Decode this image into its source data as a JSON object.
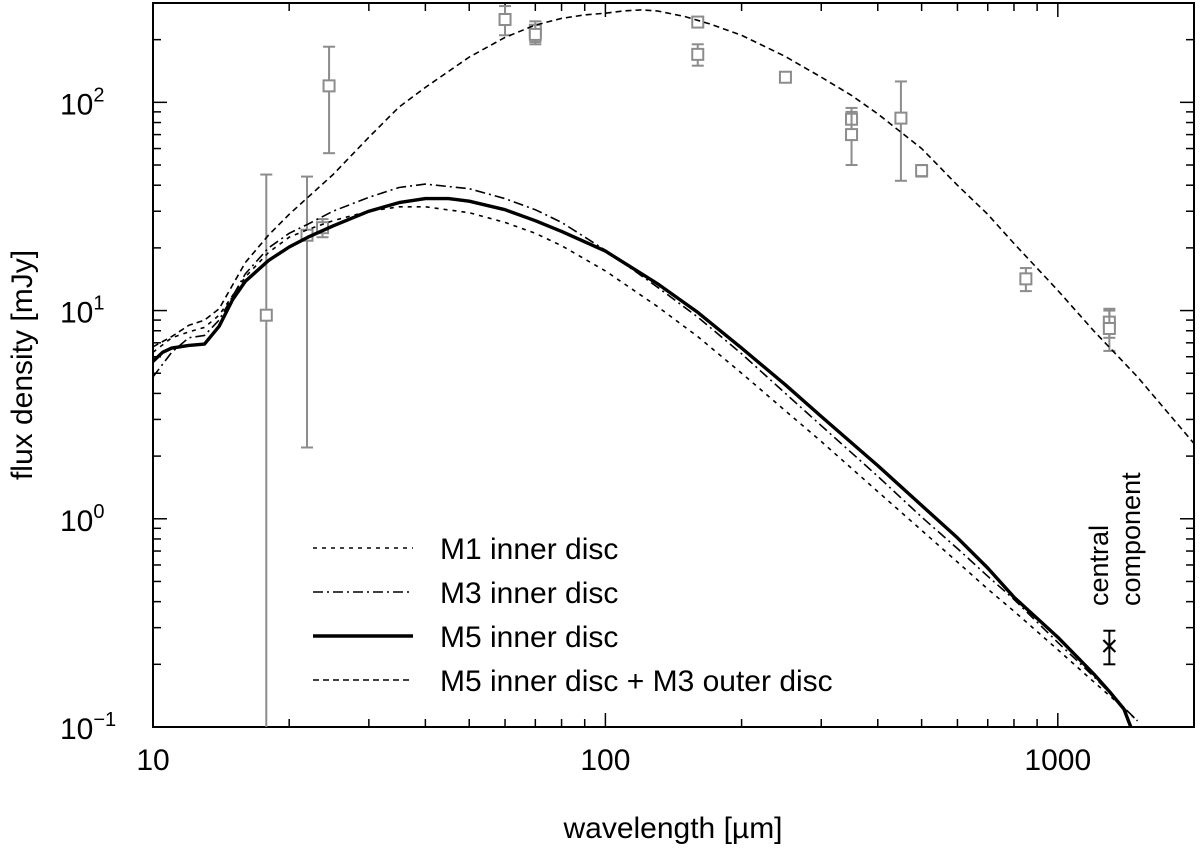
{
  "chart_data": {
    "type": "line",
    "xlabel": "wavelength [µm]",
    "ylabel": "flux density [mJy]",
    "xscale": "log",
    "yscale": "log",
    "xlim": [
      10,
      2000
    ],
    "ylim": [
      0.1,
      300
    ],
    "x_ticks": [
      {
        "value": 10,
        "label": "10"
      },
      {
        "value": 100,
        "label": "100"
      },
      {
        "value": 1000,
        "label": "1000"
      }
    ],
    "y_ticks": [
      {
        "value": 0.1,
        "base": "10",
        "exp": "−1"
      },
      {
        "value": 1,
        "base": "10",
        "exp": "0"
      },
      {
        "value": 10,
        "base": "10",
        "exp": "1"
      },
      {
        "value": 100,
        "base": "10",
        "exp": "2"
      }
    ],
    "grid": false,
    "legend_position": "bottom-left",
    "series": [
      {
        "name": "M1 inner disc",
        "style": "dotted",
        "points": [
          [
            10,
            6.3
          ],
          [
            11,
            7.4
          ],
          [
            12,
            7.9
          ],
          [
            13,
            8.3
          ],
          [
            14,
            9.5
          ],
          [
            16,
            14.5
          ],
          [
            18,
            19
          ],
          [
            20,
            22.5
          ],
          [
            22,
            24.5
          ],
          [
            25,
            27
          ],
          [
            30,
            30
          ],
          [
            35,
            31.5
          ],
          [
            40,
            31.5
          ],
          [
            50,
            29.5
          ],
          [
            60,
            26.5
          ],
          [
            70,
            23.5
          ],
          [
            80,
            20.5
          ],
          [
            100,
            15.5
          ],
          [
            130,
            10.5
          ],
          [
            160,
            7.5
          ],
          [
            200,
            5.0
          ],
          [
            250,
            3.3
          ],
          [
            300,
            2.35
          ],
          [
            400,
            1.35
          ],
          [
            500,
            0.88
          ],
          [
            600,
            0.62
          ],
          [
            700,
            0.46
          ],
          [
            800,
            0.36
          ],
          [
            1000,
            0.235
          ],
          [
            1200,
            0.165
          ],
          [
            1400,
            0.123
          ],
          [
            1500,
            0.107
          ]
        ]
      },
      {
        "name": "M3 inner disc",
        "style": "dash-dot",
        "points": [
          [
            10,
            4.8
          ],
          [
            11,
            6.3
          ],
          [
            12,
            7.4
          ],
          [
            13,
            7.6
          ],
          [
            14,
            9
          ],
          [
            16,
            15
          ],
          [
            18,
            20
          ],
          [
            20,
            23.5
          ],
          [
            22,
            26
          ],
          [
            25,
            30
          ],
          [
            30,
            35
          ],
          [
            35,
            39
          ],
          [
            40,
            40.5
          ],
          [
            50,
            38.5
          ],
          [
            60,
            34.5
          ],
          [
            70,
            30.5
          ],
          [
            80,
            26.5
          ],
          [
            100,
            19.5
          ],
          [
            130,
            13
          ],
          [
            160,
            9.3
          ],
          [
            200,
            6.2
          ],
          [
            250,
            4.0
          ],
          [
            300,
            2.8
          ],
          [
            400,
            1.6
          ],
          [
            500,
            1.02
          ],
          [
            600,
            0.72
          ],
          [
            700,
            0.53
          ],
          [
            800,
            0.41
          ],
          [
            1000,
            0.255
          ],
          [
            1200,
            0.175
          ],
          [
            1400,
            0.124
          ],
          [
            1500,
            0.107
          ]
        ]
      },
      {
        "name": "M5 inner disc",
        "style": "solid-thick",
        "points": [
          [
            10,
            5.7
          ],
          [
            10.5,
            6.3
          ],
          [
            11,
            6.6
          ],
          [
            12,
            6.8
          ],
          [
            13,
            6.9
          ],
          [
            14,
            8.4
          ],
          [
            15,
            11.3
          ],
          [
            16,
            13.8
          ],
          [
            18,
            17.4
          ],
          [
            20,
            20.2
          ],
          [
            22,
            22.5
          ],
          [
            25,
            25.5
          ],
          [
            30,
            30
          ],
          [
            35,
            33
          ],
          [
            40,
            34.5
          ],
          [
            45,
            34.5
          ],
          [
            50,
            33.5
          ],
          [
            60,
            30.5
          ],
          [
            70,
            27
          ],
          [
            80,
            24
          ],
          [
            100,
            19.3
          ],
          [
            130,
            13.5
          ],
          [
            160,
            9.8
          ],
          [
            200,
            6.6
          ],
          [
            250,
            4.4
          ],
          [
            300,
            3.1
          ],
          [
            400,
            1.8
          ],
          [
            500,
            1.16
          ],
          [
            600,
            0.81
          ],
          [
            700,
            0.58
          ],
          [
            800,
            0.42
          ],
          [
            1000,
            0.27
          ],
          [
            1200,
            0.18
          ],
          [
            1300,
            0.148
          ],
          [
            1400,
            0.122
          ],
          [
            1450,
            0.1
          ]
        ]
      },
      {
        "name": "M5 inner disc + M3 outer disc",
        "style": "dashed",
        "points": [
          [
            10,
            6.7
          ],
          [
            11,
            7.5
          ],
          [
            12,
            8.5
          ],
          [
            13,
            9
          ],
          [
            14,
            10.2
          ],
          [
            16,
            17
          ],
          [
            18,
            23
          ],
          [
            20,
            29
          ],
          [
            22,
            35
          ],
          [
            25,
            45
          ],
          [
            30,
            68
          ],
          [
            35,
            95
          ],
          [
            40,
            118
          ],
          [
            50,
            165
          ],
          [
            60,
            205
          ],
          [
            70,
            235
          ],
          [
            80,
            253
          ],
          [
            90,
            263
          ],
          [
            100,
            268
          ],
          [
            110,
            275
          ],
          [
            120,
            278
          ],
          [
            130,
            275
          ],
          [
            150,
            258
          ],
          [
            170,
            238
          ],
          [
            200,
            210
          ],
          [
            250,
            166
          ],
          [
            300,
            132
          ],
          [
            350,
            108
          ],
          [
            400,
            88
          ],
          [
            500,
            60
          ],
          [
            600,
            40
          ],
          [
            700,
            29
          ],
          [
            800,
            21
          ],
          [
            1000,
            12.5
          ],
          [
            1200,
            8
          ],
          [
            1500,
            4.8
          ],
          [
            2000,
            2.3
          ]
        ]
      }
    ],
    "observations": {
      "name": "observed photometry",
      "points": [
        {
          "x": 17.8,
          "y": 9.5,
          "ylo": 0.1,
          "yhi": 45
        },
        {
          "x": 21.9,
          "y": 23,
          "ylo": 2.2,
          "yhi": 44
        },
        {
          "x": 23.7,
          "y": 25,
          "ylo": 22.5,
          "yhi": 27.5
        },
        {
          "x": 24.5,
          "y": 120,
          "ylo": 57,
          "yhi": 185
        },
        {
          "x": 60,
          "y": 250,
          "ylo": 210,
          "yhi": 290
        },
        {
          "x": 70,
          "y": 222,
          "ylo": 195,
          "yhi": 245
        },
        {
          "x": 70,
          "y": 212,
          "ylo": 190,
          "yhi": 235
        },
        {
          "x": 160,
          "y": 243,
          "ylo": 230,
          "yhi": 256
        },
        {
          "x": 160,
          "y": 170,
          "ylo": 150,
          "yhi": 190
        },
        {
          "x": 250,
          "y": 132,
          "ylo": 125,
          "yhi": 139
        },
        {
          "x": 350,
          "y": 83,
          "ylo": 72,
          "yhi": 94
        },
        {
          "x": 350,
          "y": 70,
          "ylo": 50,
          "yhi": 90
        },
        {
          "x": 450,
          "y": 84,
          "ylo": 42,
          "yhi": 126
        },
        {
          "x": 500,
          "y": 47,
          "ylo": 44,
          "yhi": 50
        },
        {
          "x": 850,
          "y": 14.2,
          "ylo": 12.4,
          "yhi": 16.0
        },
        {
          "x": 1300,
          "y": 8.8,
          "ylo": 7.4,
          "yhi": 10.2
        },
        {
          "x": 1300,
          "y": 8.2,
          "ylo": 6.4,
          "yhi": 10.0
        }
      ]
    },
    "central_component": {
      "label_line1": "central",
      "label_line2": "component",
      "x": 1300,
      "y": 0.245,
      "ylo": 0.2,
      "yhi": 0.29
    }
  }
}
